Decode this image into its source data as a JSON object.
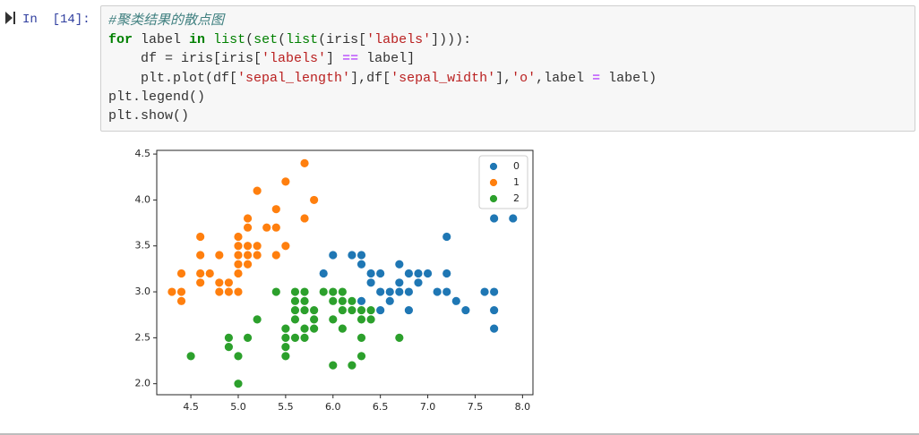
{
  "cell": {
    "prompt": "In  [14]:",
    "code": [
      [
        {
          "text": "#聚类结果的散点图",
          "color": "#408080",
          "style": "italic"
        }
      ],
      [
        {
          "text": "for",
          "color": "#008000",
          "weight": "bold"
        },
        " label ",
        {
          "text": "in",
          "color": "#008000",
          "weight": "bold"
        },
        " ",
        {
          "text": "list",
          "color": "#008000"
        },
        "(",
        {
          "text": "set",
          "color": "#008000"
        },
        "(",
        {
          "text": "list",
          "color": "#008000"
        },
        "(iris[",
        {
          "text": "'labels'",
          "color": "#ba2121"
        },
        "]))):"
      ],
      [
        "    df = iris[iris[",
        {
          "text": "'labels'",
          "color": "#ba2121"
        },
        "] ",
        {
          "text": "==",
          "color": "#aa22ff"
        },
        " label]"
      ],
      [
        "    plt.plot(df[",
        {
          "text": "'sepal_length'",
          "color": "#ba2121"
        },
        "],df[",
        {
          "text": "'sepal_width'",
          "color": "#ba2121"
        },
        "],",
        {
          "text": "'o'",
          "color": "#ba2121"
        },
        ",label ",
        {
          "text": "=",
          "color": "#aa22ff"
        },
        " label)"
      ],
      [
        "plt.legend()"
      ],
      [
        "plt.show()"
      ]
    ]
  },
  "chart_data": {
    "type": "scatter",
    "xlim": [
      4.14,
      8.11
    ],
    "ylim": [
      1.88,
      4.54
    ],
    "xticks": [
      4.5,
      {
        "value": 5,
        "label": "5.0"
      },
      5.5,
      {
        "value": 6,
        "label": "6.0"
      },
      6.5,
      {
        "value": 7,
        "label": "7.0"
      },
      7.5,
      {
        "value": 8,
        "label": "8.0"
      }
    ],
    "yticks": [
      {
        "value": 2,
        "label": "2.0"
      },
      2.5,
      {
        "value": 3,
        "label": "3.0"
      },
      3.5,
      {
        "value": 4,
        "label": "4.0"
      },
      4.5
    ],
    "legend": "upper right",
    "series": [
      {
        "name": "0",
        "color": "#1f77b4",
        "x": [
          5.9,
          6.0,
          6.1,
          6.2,
          6.3,
          6.3,
          6.4,
          6.4,
          6.4,
          6.5,
          6.5,
          6.5,
          6.6,
          6.6,
          6.7,
          6.7,
          6.7,
          6.8,
          6.8,
          6.8,
          6.9,
          6.9,
          7.0,
          7.1,
          7.2,
          7.2,
          7.2,
          7.3,
          7.4,
          7.6,
          7.7,
          7.7,
          7.7,
          7.7,
          7.9,
          6.3
        ],
        "values": [
          3.2,
          3.4,
          3.0,
          3.4,
          3.3,
          3.4,
          3.1,
          3.2,
          2.8,
          3.0,
          3.2,
          2.8,
          3.0,
          2.9,
          3.0,
          3.1,
          3.3,
          3.0,
          3.2,
          2.8,
          3.1,
          3.2,
          3.2,
          3.0,
          3.0,
          3.2,
          3.6,
          2.9,
          2.8,
          3.0,
          3.0,
          2.8,
          2.6,
          3.8,
          3.8,
          2.9
        ]
      },
      {
        "name": "1",
        "color": "#ff7f0e",
        "x": [
          4.3,
          4.4,
          4.4,
          4.4,
          4.6,
          4.6,
          4.6,
          4.6,
          4.7,
          4.8,
          4.8,
          4.8,
          4.9,
          4.9,
          5.0,
          5.0,
          5.0,
          5.0,
          5.0,
          5.0,
          5.1,
          5.1,
          5.1,
          5.1,
          5.1,
          5.2,
          5.2,
          5.2,
          5.3,
          5.4,
          5.4,
          5.4,
          5.5,
          5.5,
          5.7,
          5.7,
          5.8
        ],
        "values": [
          3.0,
          3.0,
          2.9,
          3.2,
          3.1,
          3.4,
          3.6,
          3.2,
          3.2,
          3.0,
          3.1,
          3.4,
          3.0,
          3.1,
          3.0,
          3.2,
          3.3,
          3.4,
          3.5,
          3.6,
          3.3,
          3.4,
          3.5,
          3.7,
          3.8,
          3.4,
          3.5,
          4.1,
          3.7,
          3.4,
          3.7,
          3.9,
          3.5,
          4.2,
          3.8,
          4.4,
          4.0
        ]
      },
      {
        "name": "2",
        "color": "#2ca02c",
        "x": [
          4.5,
          4.9,
          4.9,
          5.0,
          5.0,
          5.1,
          5.2,
          5.4,
          5.5,
          5.5,
          5.5,
          5.5,
          5.6,
          5.6,
          5.6,
          5.6,
          5.6,
          5.7,
          5.7,
          5.7,
          5.7,
          5.7,
          5.8,
          5.8,
          5.8,
          5.9,
          6.0,
          6.0,
          6.0,
          6.0,
          6.1,
          6.1,
          6.1,
          6.1,
          6.2,
          6.2,
          6.2,
          6.3,
          6.3,
          6.3,
          6.3,
          6.4,
          6.4,
          6.7
        ],
        "values": [
          2.3,
          2.4,
          2.5,
          2.0,
          2.3,
          2.5,
          2.7,
          3.0,
          2.3,
          2.4,
          2.5,
          2.6,
          2.5,
          2.7,
          2.8,
          2.9,
          3.0,
          2.5,
          2.6,
          2.8,
          2.9,
          3.0,
          2.6,
          2.7,
          2.8,
          3.0,
          2.2,
          2.7,
          2.9,
          3.0,
          2.6,
          2.8,
          2.9,
          3.0,
          2.2,
          2.8,
          2.9,
          2.3,
          2.5,
          2.7,
          2.8,
          2.7,
          2.8,
          2.5
        ]
      }
    ]
  }
}
